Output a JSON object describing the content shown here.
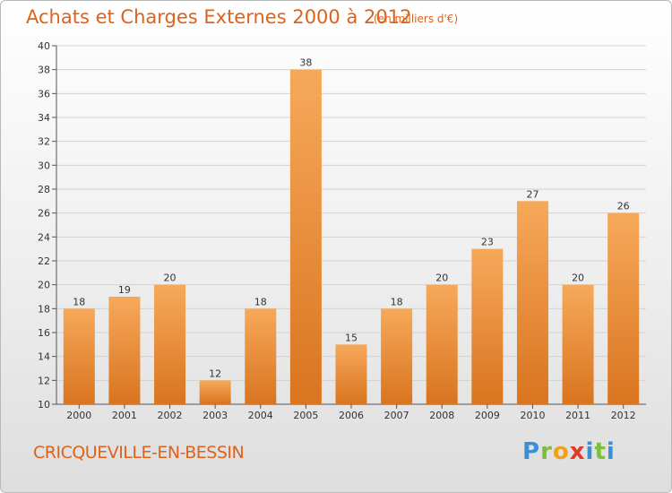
{
  "header": {
    "title": "Achats et Charges Externes 2000 à 2012",
    "unit_note": "(en milliers d'€)"
  },
  "footer": {
    "commune": "CRICQUEVILLE-EN-BESSIN",
    "brand": "Proxiti"
  },
  "colors": {
    "title": "#e0621a",
    "bar_light": "#f6a95a",
    "bar_dark": "#d9741f",
    "grid": "#d2d2d2",
    "logo_p": "#3a8fd6",
    "logo_r": "#7bbf3a",
    "logo_o": "#f2a01b",
    "logo_x": "#e03a2a",
    "logo_i": "#3a8fd6"
  },
  "chart_data": {
    "type": "bar",
    "title": "Achats et Charges Externes 2000 à 2012",
    "categories": [
      "2000",
      "2001",
      "2002",
      "2003",
      "2004",
      "2005",
      "2006",
      "2007",
      "2008",
      "2009",
      "2010",
      "2011",
      "2012"
    ],
    "values": [
      18,
      19,
      20,
      12,
      18,
      38,
      15,
      18,
      20,
      23,
      27,
      20,
      26
    ],
    "ylim": [
      10,
      40
    ],
    "yticks": [
      10,
      12,
      14,
      16,
      18,
      20,
      22,
      24,
      26,
      28,
      30,
      32,
      34,
      36,
      38,
      40
    ],
    "grid": true,
    "data_labels": true
  }
}
